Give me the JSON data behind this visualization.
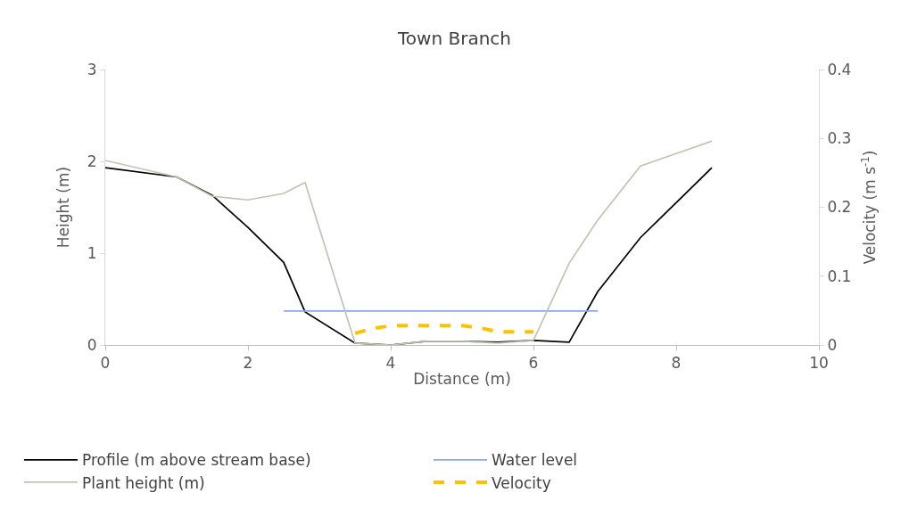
{
  "chart_data": {
    "type": "line",
    "title": "Town Branch",
    "xlabel": "Distance (m)",
    "ylabel": "Height (m)",
    "y2label": "Velocity (m s$^{-1}$)",
    "xlim": [
      0,
      10
    ],
    "xticks": [
      0,
      2,
      4,
      6,
      8,
      10
    ],
    "ylim": [
      0,
      3
    ],
    "yticks": [
      0,
      1,
      2,
      3
    ],
    "y2lim": [
      0,
      0.4
    ],
    "y2ticks": [
      0,
      0.1,
      0.2,
      0.3,
      0.4
    ],
    "legend": "bottom",
    "series": [
      {
        "name": "Profile (m above stream base)",
        "color": "#000000",
        "x": [
          0,
          1,
          1.5,
          2,
          2.5,
          2.8,
          3.5,
          4,
          4.5,
          5,
          5.5,
          6,
          6.5,
          6.9,
          7.5,
          8.5
        ],
        "values": [
          1.93,
          1.83,
          1.63,
          1.28,
          0.9,
          0.36,
          0.02,
          0.0,
          0.04,
          0.04,
          0.03,
          0.05,
          0.03,
          0.58,
          1.17,
          1.93
        ]
      },
      {
        "name": "Water level",
        "color": "#8ea9db",
        "x": [
          2.5,
          6.9
        ],
        "values": [
          0.37,
          0.37
        ]
      },
      {
        "name": "Plant height (m)",
        "color": "#bcc7b0",
        "x": [
          0,
          1,
          1.5,
          2,
          2.5,
          2.8,
          3.5,
          4,
          4.5,
          5,
          5.5,
          6,
          6.5,
          6.9,
          7.5,
          8.5
        ],
        "values": [
          2.01,
          1.83,
          1.62,
          1.58,
          1.65,
          1.77,
          0.02,
          0.0,
          0.04,
          0.04,
          0.02,
          0.05,
          0.89,
          1.36,
          1.95,
          2.22
        ]
      },
      {
        "name": "Velocity",
        "color": "#ffc000",
        "line_style": "dashed",
        "axis": "y2",
        "x": [
          3.5,
          3.75,
          4,
          4.5,
          5,
          5.25,
          5.5,
          6
        ],
        "values": [
          0.017,
          0.024,
          0.028,
          0.028,
          0.028,
          0.025,
          0.019,
          0.019
        ]
      }
    ]
  }
}
